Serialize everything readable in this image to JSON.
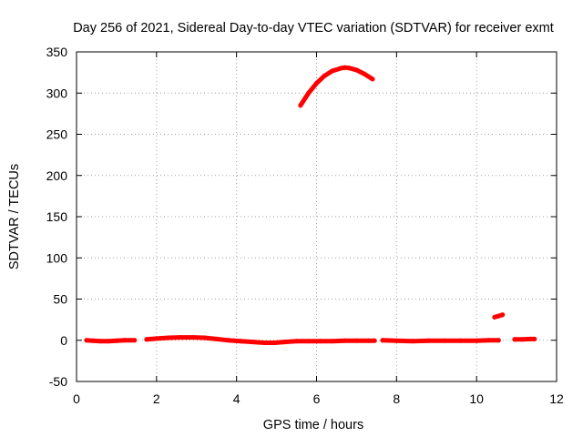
{
  "chart_data": {
    "type": "scatter",
    "title": "Day 256 of 2021, Sidereal Day-to-day VTEC variation (SDTVAR) for receiver exmt",
    "xlabel": "GPS time / hours",
    "ylabel": "SDTVAR / TECUs",
    "xlim": [
      0,
      12
    ],
    "ylim": [
      -50,
      350
    ],
    "xticks": [
      0,
      2,
      4,
      6,
      8,
      10,
      12
    ],
    "yticks": [
      -50,
      0,
      50,
      100,
      150,
      200,
      250,
      300,
      350
    ],
    "grid": true,
    "color": "#ff0000",
    "series": [
      {
        "name": "segment-1",
        "x": [
          0.25,
          0.4,
          0.6,
          0.8,
          1.0,
          1.2,
          1.45
        ],
        "y": [
          0,
          -0.5,
          -1,
          -1,
          -0.5,
          0,
          0
        ]
      },
      {
        "name": "segment-2",
        "x": [
          1.75,
          2.0,
          2.3,
          2.6,
          2.9,
          3.2,
          3.5,
          3.8,
          4.1,
          4.4,
          4.7,
          4.95,
          5.2,
          5.5,
          5.8,
          6.1,
          6.4,
          6.7,
          7.0,
          7.3,
          7.45
        ],
        "y": [
          1,
          2,
          3,
          3.5,
          3.5,
          3,
          1.5,
          0,
          -1,
          -2,
          -3,
          -3,
          -2,
          -1,
          -1,
          -1,
          -1,
          -0.5,
          -0.5,
          -0.5,
          -0.5
        ]
      },
      {
        "name": "segment-3",
        "x": [
          7.65,
          8.0,
          8.4,
          8.8,
          9.2,
          9.6,
          10.0,
          10.3,
          10.55
        ],
        "y": [
          0,
          -0.5,
          -1,
          -0.5,
          -0.5,
          -0.5,
          -0.5,
          0,
          0
        ]
      },
      {
        "name": "segment-4",
        "x": [
          10.45,
          10.55,
          10.65
        ],
        "y": [
          28,
          29.5,
          31
        ]
      },
      {
        "name": "segment-5",
        "x": [
          10.95,
          11.15,
          11.35,
          11.45
        ],
        "y": [
          1,
          1,
          1.5,
          1.5
        ]
      },
      {
        "name": "segment-6",
        "x": [
          5.6,
          5.8,
          6.0,
          6.2,
          6.4,
          6.6,
          6.7,
          6.8,
          7.0,
          7.2,
          7.4
        ],
        "y": [
          285,
          300,
          312,
          321,
          327,
          330,
          331,
          330.5,
          328,
          323,
          317
        ]
      }
    ]
  }
}
